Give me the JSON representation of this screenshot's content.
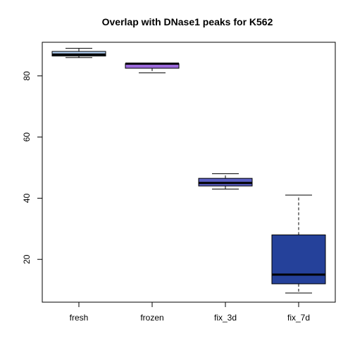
{
  "chart_data": {
    "type": "boxplot",
    "title": "Overlap with DNase1 peaks for K562",
    "xlabel": "",
    "ylabel": "",
    "ylim": [
      6,
      91
    ],
    "yticks": [
      20,
      40,
      60,
      80
    ],
    "grid": false,
    "legend": "none",
    "categories": [
      "fresh",
      "frozen",
      "fix_3d",
      "fix_7d"
    ],
    "boxes": [
      {
        "category": "fresh",
        "min": 86,
        "q1": 86.5,
        "median": 87,
        "q3": 88,
        "max": 89,
        "color": "#aecdf0"
      },
      {
        "category": "frozen",
        "min": 81,
        "q1": 82.5,
        "median": 84,
        "q3": 84,
        "max": 84,
        "color": "#9b69db"
      },
      {
        "category": "fix_3d",
        "min": 43,
        "q1": 44,
        "median": 45,
        "q3": 46.5,
        "max": 48,
        "color": "#5a5ec2"
      },
      {
        "category": "fix_7d",
        "min": 9,
        "q1": 12,
        "median": 15,
        "q3": 28,
        "max": 41,
        "color": "#25419a"
      }
    ]
  }
}
